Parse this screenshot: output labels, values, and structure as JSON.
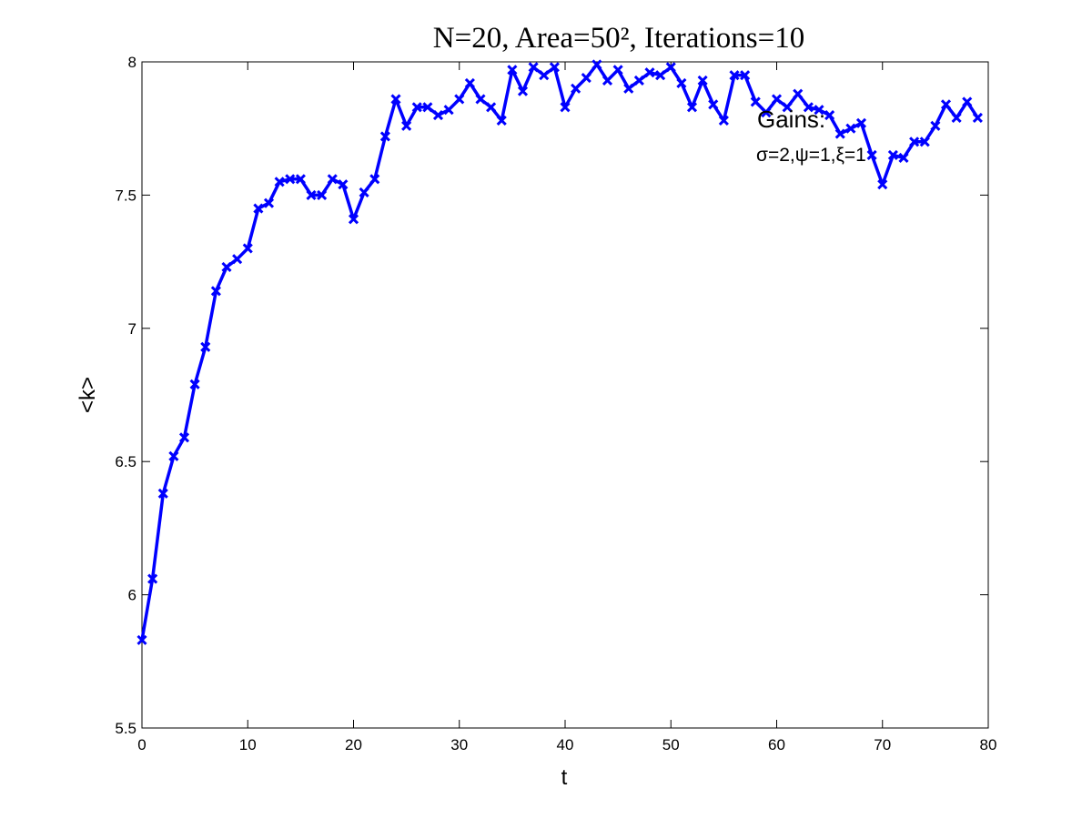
{
  "chart_data": {
    "type": "line",
    "title": "N=20, Area=50², Iterations=10",
    "xlabel": "t",
    "ylabel": "<k>",
    "xlim": [
      0,
      80
    ],
    "ylim": [
      5.5,
      8
    ],
    "xticks": [
      "0",
      "10",
      "20",
      "30",
      "40",
      "50",
      "60",
      "70",
      "80"
    ],
    "yticks": [
      "5.5",
      "6",
      "6.5",
      "7",
      "7.5",
      "8"
    ],
    "grid": false,
    "legend": "none",
    "marker": "x",
    "line_color": "#0000FF",
    "annotations": [
      "Gains:",
      "σ=2,ψ=1,ξ=1"
    ],
    "series": [
      {
        "x": [
          0,
          1,
          2,
          3,
          4,
          5,
          6,
          7,
          8,
          9,
          10,
          11,
          12,
          13,
          14,
          15,
          16,
          17,
          18,
          19,
          20,
          21,
          22,
          23,
          24,
          25,
          26,
          27,
          28,
          29,
          30,
          31,
          32,
          33,
          34,
          35,
          36,
          37,
          38,
          39,
          40,
          41,
          42,
          43,
          44,
          45,
          46,
          47,
          48,
          49,
          50,
          51,
          52,
          53,
          54,
          55,
          56,
          57,
          58,
          59,
          60,
          61,
          62,
          63,
          64,
          65,
          66,
          67,
          68,
          69,
          70,
          71,
          72,
          73,
          74,
          75,
          76,
          77,
          78,
          79
        ],
        "values": [
          5.83,
          6.06,
          6.38,
          6.52,
          6.59,
          6.79,
          6.93,
          7.14,
          7.23,
          7.26,
          7.3,
          7.45,
          7.47,
          7.55,
          7.56,
          7.56,
          7.5,
          7.5,
          7.56,
          7.54,
          7.41,
          7.51,
          7.56,
          7.72,
          7.86,
          7.76,
          7.83,
          7.83,
          7.8,
          7.82,
          7.86,
          7.92,
          7.86,
          7.83,
          7.78,
          7.97,
          7.89,
          7.98,
          7.95,
          7.98,
          7.83,
          7.9,
          7.94,
          7.99,
          7.93,
          7.97,
          7.9,
          7.93,
          7.96,
          7.95,
          7.98,
          7.92,
          7.83,
          7.93,
          7.84,
          7.78,
          7.95,
          7.95,
          7.85,
          7.81,
          7.86,
          7.83,
          7.88,
          7.83,
          7.82,
          7.8,
          7.73,
          7.75,
          7.77,
          7.65,
          7.54,
          7.65,
          7.64,
          7.7,
          7.7,
          7.76,
          7.84,
          7.79,
          7.85,
          7.79
        ]
      }
    ]
  }
}
